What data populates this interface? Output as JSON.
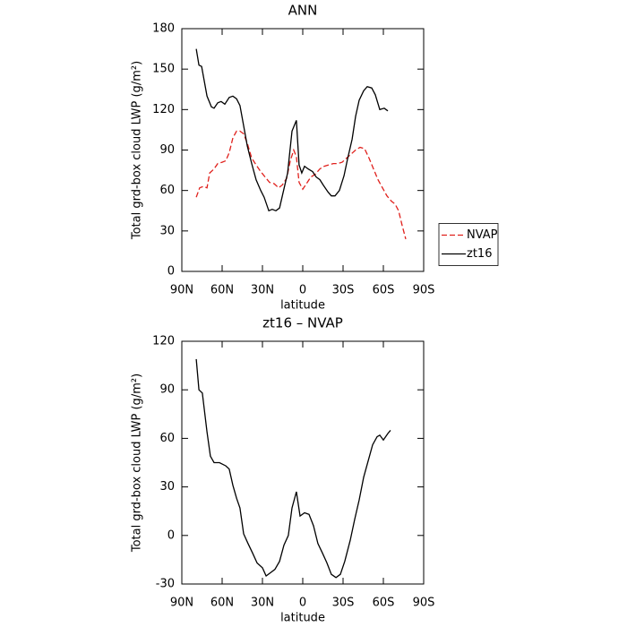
{
  "chart_data": [
    {
      "type": "line",
      "title": "ANN",
      "xlabel": "latitude",
      "ylabel": "Total grd-box cloud LWP (g/m²)",
      "xlim": [
        90,
        -90
      ],
      "xticks": [
        {
          "value": 90,
          "label": "90N"
        },
        {
          "value": 60,
          "label": "60N"
        },
        {
          "value": 30,
          "label": "30N"
        },
        0,
        {
          "value": -30,
          "label": "30S"
        },
        {
          "value": -60,
          "label": "60S"
        },
        {
          "value": -90,
          "label": "90S"
        }
      ],
      "ylim": [
        0,
        180
      ],
      "yticks": [
        0,
        30,
        60,
        90,
        120,
        150,
        180
      ],
      "legend": "right",
      "series": [
        {
          "name": "NVAP",
          "color": "#e0201c",
          "style": "dashed",
          "x": [
            79.3,
            76.7,
            74,
            71.3,
            69.3,
            66,
            63.3,
            60,
            57.3,
            54.7,
            52,
            49.3,
            46.7,
            44,
            41.3,
            38,
            34.7,
            31.3,
            28,
            24.7,
            21.3,
            18,
            15.3,
            12,
            9.3,
            6.7,
            4.7,
            2.7,
            0,
            -2.7,
            -6,
            -9.3,
            -12.7,
            -16,
            -19.3,
            -22.7,
            -26,
            -29.3,
            -32.7,
            -36,
            -39.3,
            -42.7,
            -46,
            -49.3,
            -52.7,
            -56,
            -59.3,
            -62.7,
            -66,
            -68.7,
            -71.3,
            -74,
            -76.7
          ],
          "values": [
            55,
            62,
            63,
            62,
            73,
            76,
            80,
            81,
            82,
            88,
            99,
            104,
            104,
            102,
            95,
            84,
            79,
            74,
            70,
            66,
            65,
            62,
            64,
            69,
            82,
            90,
            85,
            66,
            61,
            65,
            70,
            72,
            76,
            78,
            79,
            80,
            80,
            81,
            84,
            87,
            90,
            92,
            91,
            84,
            76,
            68,
            62,
            56,
            52,
            50,
            45,
            34,
            24
          ]
        },
        {
          "name": "zt16",
          "color": "#000000",
          "style": "solid",
          "x": [
            79.3,
            77.3,
            75.3,
            71.3,
            68,
            66,
            63.3,
            60.7,
            58,
            54.7,
            52,
            49.3,
            46.7,
            44,
            41.3,
            38,
            34.7,
            31.3,
            28.7,
            25.3,
            22.7,
            20,
            17.3,
            14.7,
            11.3,
            8,
            4.7,
            2.7,
            0.7,
            -1.3,
            -4,
            -7.3,
            -10,
            -12.7,
            -15.3,
            -18.7,
            -21.3,
            -24,
            -27.3,
            -30.7,
            -33.3,
            -36.7,
            -39.3,
            -42,
            -45.3,
            -48,
            -51.3,
            -54,
            -57.3,
            -60.7,
            -63.3
          ],
          "values": [
            165,
            153,
            152,
            130,
            122,
            121,
            125,
            126,
            124,
            129,
            130,
            128,
            123,
            108,
            93,
            80,
            68,
            60,
            55,
            45,
            46,
            45,
            47,
            58,
            73,
            104,
            112,
            79,
            73,
            78,
            76,
            74,
            70,
            68,
            64,
            59,
            56,
            56,
            60,
            71,
            83,
            98,
            115,
            127,
            134,
            137,
            136,
            131,
            120,
            121,
            119
          ]
        }
      ]
    },
    {
      "type": "line",
      "title": "zt16 – NVAP",
      "xlabel": "latitude",
      "ylabel": "Total grd-box cloud LWP (g/m²)",
      "xlim": [
        90,
        -90
      ],
      "xticks": [
        {
          "value": 90,
          "label": "90N"
        },
        {
          "value": 60,
          "label": "60N"
        },
        {
          "value": 30,
          "label": "30N"
        },
        0,
        {
          "value": -30,
          "label": "30S"
        },
        {
          "value": -60,
          "label": "60S"
        },
        {
          "value": -90,
          "label": "90S"
        }
      ],
      "ylim": [
        -30,
        120
      ],
      "yticks": [
        -30,
        0,
        30,
        60,
        90,
        120
      ],
      "color": "#000000",
      "x": [
        79.3,
        77.3,
        74.7,
        71.3,
        68.7,
        66,
        62,
        57.3,
        54.7,
        52,
        49.3,
        46.7,
        44,
        40.7,
        37.3,
        34,
        30,
        27.3,
        24,
        20.7,
        17.3,
        14,
        10.7,
        8,
        4.7,
        2,
        -1.3,
        -4.7,
        -8,
        -11.3,
        -14.7,
        -18,
        -21.3,
        -24.7,
        -28,
        -31.3,
        -35.3,
        -38.7,
        -42,
        -45.3,
        -48.7,
        -52,
        -55.3,
        -57.3,
        -60,
        -63.3,
        -65.3
      ],
      "values": [
        109,
        90,
        88,
        64,
        49,
        45,
        45,
        43,
        41,
        31,
        23,
        17,
        1,
        -5,
        -11,
        -17,
        -20,
        -25,
        -23,
        -21,
        -16,
        -6,
        0,
        17,
        27,
        12,
        14,
        13,
        6,
        -5,
        -11,
        -17,
        -24,
        -26,
        -24,
        -16,
        -3,
        10,
        22,
        36,
        46,
        56,
        61,
        62,
        59,
        63,
        65
      ]
    }
  ]
}
